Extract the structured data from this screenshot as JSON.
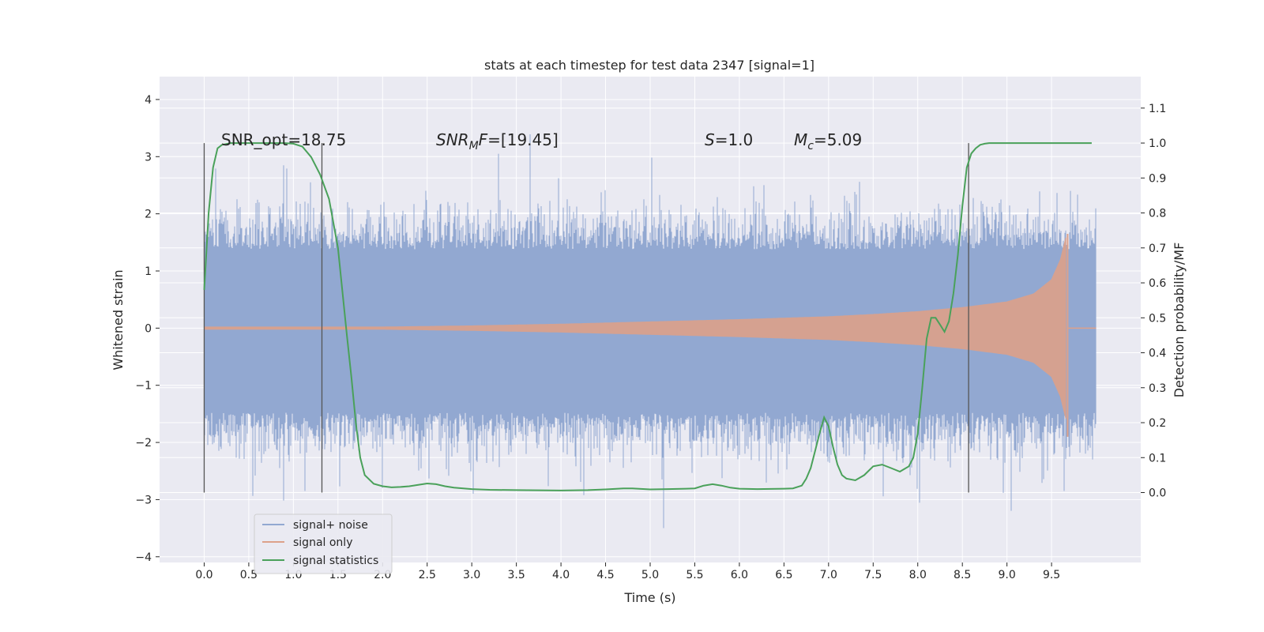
{
  "chart_data": {
    "type": "line",
    "title": "stats at each timestep for test data 2347 [signal=1]",
    "xlabel": "Time (s)",
    "ylabel": "Whitened strain",
    "y2label": "Detection probability/MF",
    "xlim": [
      -0.5,
      10.5
    ],
    "ylim": [
      -4.1,
      4.4
    ],
    "y2lim": [
      -0.2,
      1.19
    ],
    "x_ticks": [
      "0.0",
      "0.5",
      "1.0",
      "1.5",
      "2.0",
      "2.5",
      "3.0",
      "3.5",
      "4.0",
      "4.5",
      "5.0",
      "5.5",
      "6.0",
      "6.5",
      "7.0",
      "7.5",
      "8.0",
      "8.5",
      "9.0",
      "9.5"
    ],
    "y_ticks": [
      "−4",
      "−3",
      "−2",
      "−1",
      "0",
      "1",
      "2",
      "3",
      "4"
    ],
    "y2_ticks": [
      "0.0",
      "0.1",
      "0.2",
      "0.3",
      "0.4",
      "0.5",
      "0.6",
      "0.7",
      "0.8",
      "0.9",
      "1.0",
      "1.1"
    ],
    "grid": true,
    "legend_position": "lower-left",
    "annotations": {
      "snr_opt": "SNR_opt=18.75",
      "snr_mf_name": "SNR",
      "snr_mf_sub": "M",
      "snr_mf_rest": "F",
      "snr_mf_value": "=[19.45]",
      "s_name": "S",
      "s_value": "=1.0",
      "mc_name": "M",
      "mc_sub": "c",
      "mc_value": "=5.09"
    },
    "vertical_lines_x": [
      0.0,
      1.32,
      8.57
    ],
    "series": [
      {
        "name": "signal+ noise",
        "color": "#92a8d1",
        "x_range": [
          0.0,
          10.0
        ],
        "core_band": [
          -1.48,
          1.38
        ],
        "envelope_min": -3.7,
        "envelope_max": 4.05
      },
      {
        "name": "signal only",
        "color": "#dda18a",
        "amplitude": {
          "t": [
            0.0,
            2.0,
            3.0,
            4.0,
            5.0,
            6.0,
            7.0,
            7.5,
            8.0,
            8.5,
            9.0,
            9.3,
            9.5,
            9.6,
            9.67
          ],
          "a": [
            0.02,
            0.02,
            0.04,
            0.07,
            0.11,
            0.15,
            0.2,
            0.24,
            0.29,
            0.36,
            0.46,
            0.6,
            0.85,
            1.2,
            1.65
          ]
        },
        "merger_time": 9.68
      },
      {
        "name": "signal statistics",
        "color": "#4aa15a",
        "axis": "right",
        "x": [
          0.0,
          0.05,
          0.1,
          0.15,
          0.2,
          0.3,
          0.4,
          0.5,
          0.6,
          0.7,
          0.8,
          0.9,
          1.0,
          1.1,
          1.2,
          1.3,
          1.4,
          1.5,
          1.6,
          1.65,
          1.7,
          1.75,
          1.8,
          1.9,
          2.0,
          2.1,
          2.2,
          2.3,
          2.4,
          2.5,
          2.6,
          2.7,
          2.8,
          3.0,
          3.2,
          3.5,
          4.0,
          4.3,
          4.5,
          4.7,
          4.8,
          5.0,
          5.2,
          5.4,
          5.5,
          5.6,
          5.7,
          5.8,
          5.9,
          6.0,
          6.2,
          6.5,
          6.6,
          6.7,
          6.75,
          6.8,
          6.85,
          6.9,
          6.95,
          7.0,
          7.05,
          7.1,
          7.15,
          7.2,
          7.3,
          7.4,
          7.5,
          7.6,
          7.7,
          7.8,
          7.9,
          7.95,
          8.0,
          8.05,
          8.1,
          8.15,
          8.2,
          8.25,
          8.3,
          8.35,
          8.4,
          8.45,
          8.5,
          8.55,
          8.6,
          8.65,
          8.7,
          8.75,
          8.8,
          8.9,
          9.0,
          9.2,
          9.5,
          9.8,
          9.95
        ],
        "y": [
          0.58,
          0.8,
          0.93,
          0.985,
          0.995,
          1.0,
          1.0,
          1.0,
          1.0,
          1.0,
          1.0,
          1.0,
          0.998,
          0.99,
          0.96,
          0.91,
          0.84,
          0.7,
          0.45,
          0.33,
          0.2,
          0.1,
          0.05,
          0.025,
          0.018,
          0.015,
          0.016,
          0.018,
          0.022,
          0.026,
          0.024,
          0.018,
          0.014,
          0.01,
          0.008,
          0.007,
          0.006,
          0.007,
          0.009,
          0.012,
          0.012,
          0.009,
          0.01,
          0.011,
          0.012,
          0.02,
          0.024,
          0.02,
          0.014,
          0.011,
          0.01,
          0.011,
          0.012,
          0.02,
          0.04,
          0.07,
          0.12,
          0.17,
          0.215,
          0.19,
          0.13,
          0.08,
          0.05,
          0.04,
          0.035,
          0.05,
          0.075,
          0.08,
          0.07,
          0.06,
          0.075,
          0.1,
          0.17,
          0.3,
          0.44,
          0.5,
          0.5,
          0.48,
          0.46,
          0.49,
          0.57,
          0.68,
          0.82,
          0.93,
          0.97,
          0.985,
          0.995,
          0.998,
          1.0,
          1.0,
          1.0,
          1.0,
          1.0,
          1.0,
          1.0
        ]
      }
    ]
  }
}
